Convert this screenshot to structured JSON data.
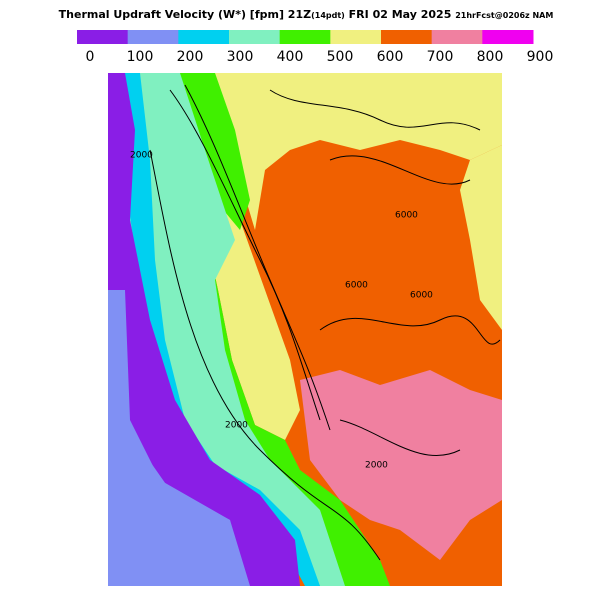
{
  "header": {
    "title_parts": [
      "Thermal Updraft Velocity (W*) [fpm] 21Z",
      "(14pdt)",
      " FRI 02 May 2025 ",
      "21hrFcst@0206z NAM"
    ]
  },
  "colorbar": {
    "colors": [
      "#8a1ee6",
      "#8090f4",
      "#00d0f0",
      "#80f0c0",
      "#40f000",
      "#f0f080",
      "#f06000",
      "#f080a0",
      "#f000f0"
    ],
    "ticks": [
      0,
      100,
      200,
      300,
      400,
      500,
      600,
      700,
      800,
      900
    ]
  },
  "map": {
    "contour_labels": [
      "6000",
      "6000",
      "6000",
      "2000",
      "2000",
      "2000"
    ]
  }
}
